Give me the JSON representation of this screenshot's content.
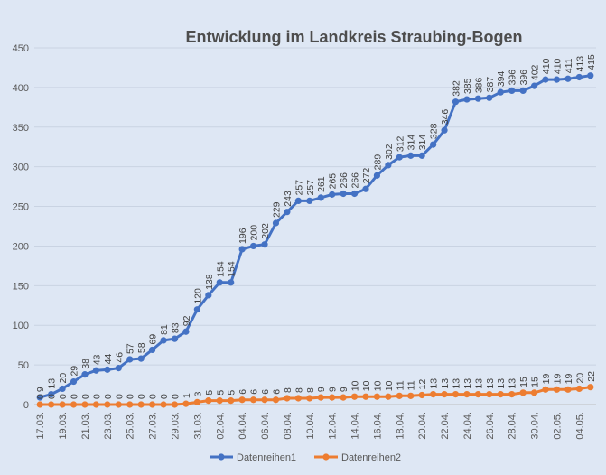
{
  "chart_data": {
    "type": "line",
    "title": "Entwicklung im Landkreis Straubing-Bogen",
    "xlabel": "",
    "ylabel": "",
    "ylim": [
      0,
      450
    ],
    "yticks": [
      0,
      50,
      100,
      150,
      200,
      250,
      300,
      350,
      400,
      450
    ],
    "grid": true,
    "legend_position": "bottom",
    "x": [
      "17.03.",
      "18.03.",
      "19.03.",
      "20.03.",
      "21.03.",
      "22.03.",
      "23.03.",
      "24.03.",
      "25.03.",
      "26.03.",
      "27.03.",
      "28.03.",
      "29.03.",
      "30.03.",
      "31.03.",
      "01.04.",
      "02.04.",
      "03.04.",
      "04.04.",
      "05.04.",
      "06.04.",
      "07.04.",
      "08.04.",
      "09.04.",
      "10.04.",
      "11.04.",
      "12.04.",
      "13.04.",
      "14.04.",
      "15.04.",
      "16.04.",
      "17.04.",
      "18.04.",
      "19.04.",
      "20.04.",
      "21.04.",
      "22.04.",
      "23.04.",
      "24.04.",
      "25.04.",
      "26.04.",
      "27.04.",
      "28.04.",
      "29.04.",
      "30.04.",
      "01.05.",
      "02.05.",
      "03.05.",
      "04.05.",
      "05.05."
    ],
    "xtick_labels": [
      "17.03.",
      "19.03.",
      "21.03.",
      "23.03.",
      "25.03.",
      "27.03.",
      "29.03.",
      "31.03.",
      "02.04.",
      "04.04.",
      "06.04.",
      "08.04.",
      "10.04.",
      "12.04.",
      "14.04.",
      "16.04.",
      "18.04.",
      "20.04.",
      "22.04.",
      "24.04.",
      "26.04.",
      "28.04.",
      "30.04.",
      "02.05.",
      "04.05."
    ],
    "series": [
      {
        "name": "Datenreihen1",
        "color": "#4472c4",
        "values": [
          9,
          13,
          20,
          29,
          38,
          43,
          44,
          46,
          57,
          58,
          69,
          81,
          83,
          92,
          120,
          138,
          154,
          154,
          196,
          200,
          202,
          229,
          243,
          257,
          257,
          261,
          265,
          266,
          266,
          272,
          289,
          302,
          312,
          314,
          314,
          328,
          346,
          382,
          385,
          386,
          387,
          394,
          396,
          396,
          402,
          410,
          410,
          411,
          413,
          415
        ]
      },
      {
        "name": "Datenreihen2",
        "color": "#ed7d31",
        "values": [
          0,
          0,
          0,
          0,
          0,
          0,
          0,
          0,
          0,
          0,
          0,
          0,
          0,
          1,
          3,
          5,
          5,
          5,
          6,
          6,
          6,
          6,
          8,
          8,
          8,
          9,
          9,
          9,
          10,
          10,
          10,
          10,
          11,
          11,
          12,
          13,
          13,
          13,
          13,
          13,
          13,
          13,
          13,
          15,
          15,
          19,
          19,
          19,
          20,
          22
        ]
      }
    ]
  }
}
